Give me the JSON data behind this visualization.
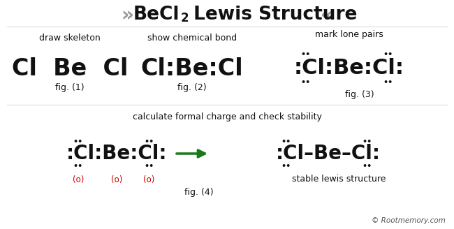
{
  "bg_color": "#ffffff",
  "black": "#111111",
  "red": "#cc0000",
  "green": "#1a7a1a",
  "gray": "#999999",
  "copyright_color": "#555555",
  "title": "BeCl",
  "title_sub": "2",
  "title_rest": " Lewis Structure",
  "chevron_left": "»",
  "chevron_right": "«",
  "fig1_label": "draw skeleton",
  "fig1_text": "Cl  Be  Cl",
  "fig1_cap": "fig. (1)",
  "fig2_label": "show chemical bond",
  "fig2_text": "Cl:Be:Cl",
  "fig2_cap": "fig. (2)",
  "fig3_label": "mark lone pairs",
  "fig3_text": ":Cl:Be:Cl:",
  "fig3_cap": "fig. (3)",
  "fig4_label": "calculate formal charge and check stability",
  "fig4_left": ":Cl:Be:Cl:",
  "fig4_right": ":Cl–Be–Cl:",
  "fig4_cap": "fig. (4)",
  "fig4_stable": "stable lewis structure",
  "copyright": "© Rootmemory.com",
  "dot_pair": "••"
}
